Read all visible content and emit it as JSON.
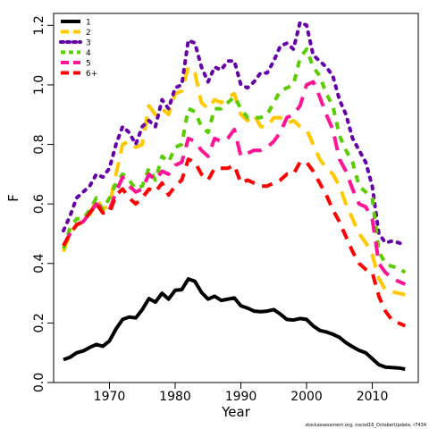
{
  "chart_data": {
    "type": "line",
    "xlabel": "Year",
    "ylabel": "F",
    "xlim": [
      1961.5,
      2017
    ],
    "ylim": [
      0,
      1.24
    ],
    "xticks": [
      1970,
      1980,
      1990,
      2000,
      2010
    ],
    "yticks": [
      0.0,
      0.2,
      0.4,
      0.6,
      0.8,
      1.0,
      1.2
    ],
    "ytick_labels": [
      "0.0",
      "0.2",
      "0.4",
      "0.6",
      "0.8",
      "1.0",
      "1.2"
    ],
    "grid": false,
    "legend_position": "top-left",
    "credit": "stockassessment.org, nscod16_OctoberUpdate, r7434",
    "x": [
      1963,
      1964,
      1965,
      1966,
      1967,
      1968,
      1969,
      1970,
      1971,
      1972,
      1973,
      1974,
      1975,
      1976,
      1977,
      1978,
      1979,
      1980,
      1981,
      1982,
      1983,
      1984,
      1985,
      1986,
      1987,
      1988,
      1989,
      1990,
      1991,
      1992,
      1993,
      1994,
      1995,
      1996,
      1997,
      1998,
      1999,
      2000,
      2001,
      2002,
      2003,
      2004,
      2005,
      2006,
      2007,
      2008,
      2009,
      2010,
      2011,
      2012,
      2013,
      2014,
      2015
    ],
    "series": [
      {
        "name": "1",
        "color": "#000000",
        "dash": "solid",
        "values": [
          0.077,
          0.085,
          0.1,
          0.106,
          0.118,
          0.128,
          0.122,
          0.14,
          0.18,
          0.212,
          0.22,
          0.217,
          0.245,
          0.282,
          0.27,
          0.3,
          0.28,
          0.31,
          0.312,
          0.348,
          0.34,
          0.303,
          0.28,
          0.29,
          0.276,
          0.28,
          0.284,
          0.258,
          0.25,
          0.24,
          0.238,
          0.24,
          0.245,
          0.23,
          0.212,
          0.21,
          0.215,
          0.212,
          0.19,
          0.175,
          0.17,
          0.162,
          0.152,
          0.134,
          0.12,
          0.108,
          0.1,
          0.08,
          0.06,
          0.052,
          0.05,
          0.049,
          0.045
        ]
      },
      {
        "name": "2",
        "color": "#FFC800",
        "dash": "long",
        "values": [
          0.44,
          0.5,
          0.53,
          0.54,
          0.56,
          0.62,
          0.58,
          0.6,
          0.7,
          0.8,
          0.81,
          0.79,
          0.8,
          0.93,
          0.9,
          0.92,
          0.9,
          0.97,
          0.98,
          1.06,
          1.04,
          0.94,
          0.92,
          0.95,
          0.94,
          0.96,
          0.97,
          0.9,
          0.88,
          0.9,
          0.86,
          0.86,
          0.89,
          0.89,
          0.87,
          0.88,
          0.86,
          0.85,
          0.8,
          0.75,
          0.72,
          0.7,
          0.66,
          0.6,
          0.55,
          0.5,
          0.47,
          0.43,
          0.35,
          0.31,
          0.305,
          0.3,
          0.295
        ]
      },
      {
        "name": "3",
        "color": "#6600A8",
        "dash": "dot",
        "values": [
          0.51,
          0.56,
          0.62,
          0.64,
          0.66,
          0.7,
          0.69,
          0.72,
          0.8,
          0.86,
          0.84,
          0.8,
          0.86,
          0.88,
          0.86,
          0.95,
          0.92,
          0.99,
          1.0,
          1.15,
          1.14,
          1.06,
          1.01,
          1.06,
          1.05,
          1.08,
          1.08,
          1.0,
          0.99,
          1.01,
          1.04,
          1.04,
          1.08,
          1.13,
          1.14,
          1.12,
          1.21,
          1.2,
          1.1,
          1.08,
          1.06,
          1.03,
          0.95,
          0.9,
          0.82,
          0.78,
          0.74,
          0.66,
          0.5,
          0.47,
          0.475,
          0.47,
          0.46
        ]
      },
      {
        "name": "4",
        "color": "#5ACD00",
        "dash": "short",
        "values": [
          0.45,
          0.52,
          0.55,
          0.55,
          0.58,
          0.62,
          0.58,
          0.62,
          0.67,
          0.7,
          0.68,
          0.65,
          0.66,
          0.72,
          0.68,
          0.76,
          0.74,
          0.79,
          0.8,
          0.92,
          0.91,
          0.86,
          0.84,
          0.92,
          0.92,
          0.94,
          0.96,
          0.92,
          0.89,
          0.89,
          0.89,
          0.9,
          0.94,
          0.98,
          0.99,
          1.0,
          1.09,
          1.12,
          1.06,
          1.03,
          0.97,
          0.93,
          0.83,
          0.78,
          0.74,
          0.66,
          0.64,
          0.62,
          0.44,
          0.4,
          0.39,
          0.385,
          0.37
        ]
      },
      {
        "name": "5",
        "color": "#FF1493",
        "dash": "long",
        "values": [
          0.46,
          0.5,
          0.53,
          0.54,
          0.57,
          0.6,
          0.58,
          0.58,
          0.64,
          0.69,
          0.66,
          0.64,
          0.65,
          0.7,
          0.68,
          0.71,
          0.7,
          0.73,
          0.74,
          0.82,
          0.81,
          0.78,
          0.76,
          0.82,
          0.81,
          0.82,
          0.85,
          0.76,
          0.77,
          0.78,
          0.78,
          0.79,
          0.81,
          0.84,
          0.89,
          0.9,
          0.93,
          1.0,
          1.01,
          0.96,
          0.9,
          0.85,
          0.75,
          0.71,
          0.65,
          0.6,
          0.59,
          0.55,
          0.4,
          0.37,
          0.35,
          0.34,
          0.33
        ]
      },
      {
        "name": "6+",
        "color": "#FF0000",
        "dash": "medium",
        "values": [
          0.46,
          0.5,
          0.53,
          0.54,
          0.57,
          0.6,
          0.57,
          0.57,
          0.63,
          0.65,
          0.62,
          0.6,
          0.62,
          0.65,
          0.64,
          0.67,
          0.63,
          0.66,
          0.68,
          0.75,
          0.74,
          0.7,
          0.68,
          0.72,
          0.72,
          0.72,
          0.73,
          0.67,
          0.68,
          0.67,
          0.66,
          0.66,
          0.67,
          0.68,
          0.7,
          0.7,
          0.74,
          0.74,
          0.71,
          0.67,
          0.63,
          0.58,
          0.54,
          0.49,
          0.44,
          0.4,
          0.38,
          0.37,
          0.29,
          0.24,
          0.21,
          0.2,
          0.19
        ]
      }
    ]
  }
}
